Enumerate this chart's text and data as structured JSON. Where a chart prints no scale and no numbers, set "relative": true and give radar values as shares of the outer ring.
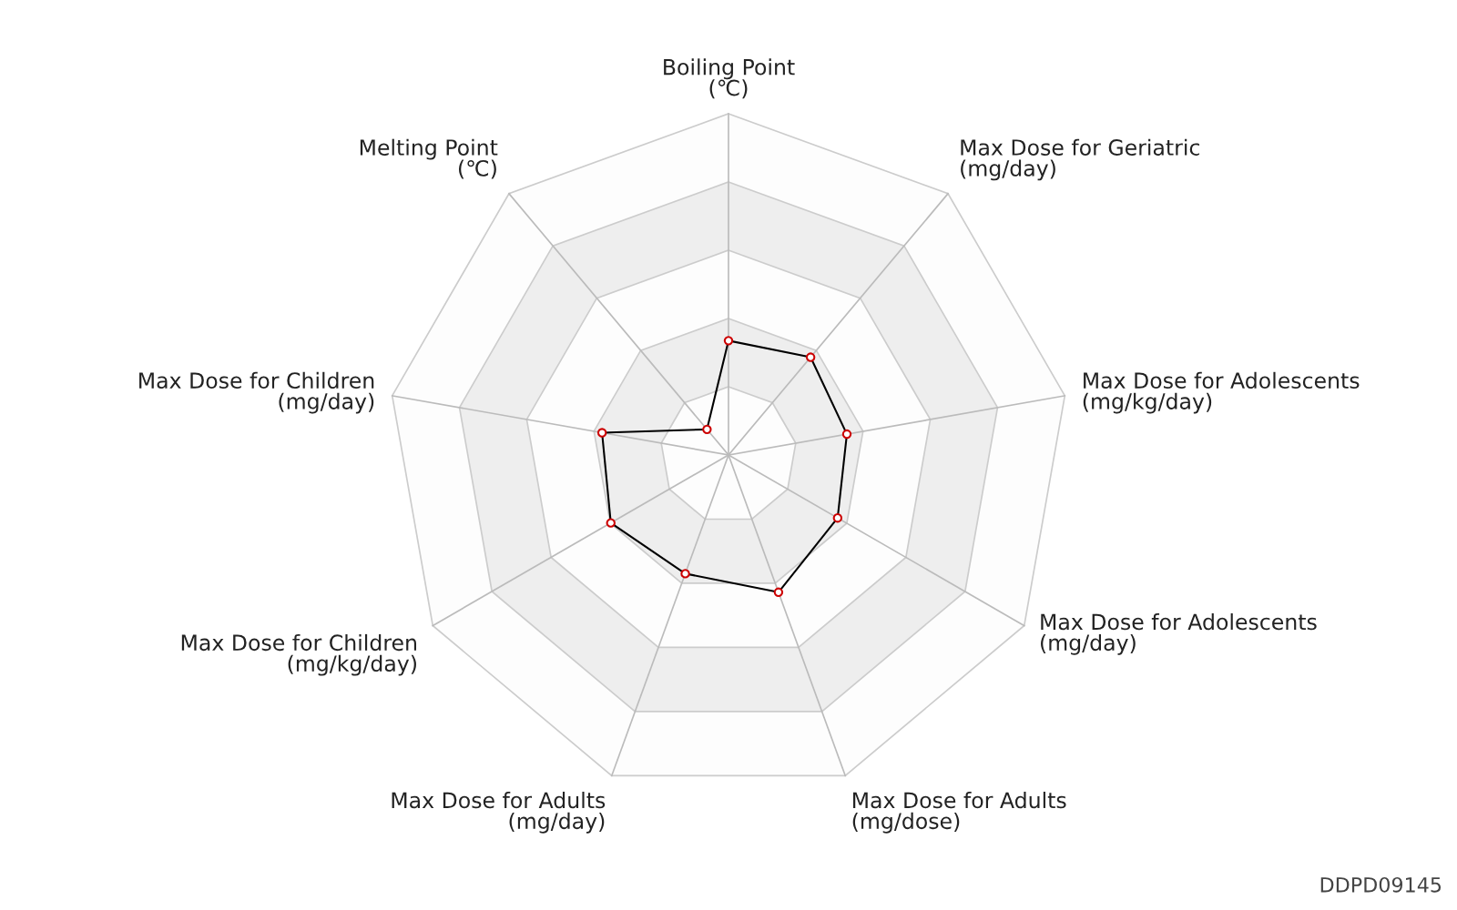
{
  "chart_data": {
    "type": "radar",
    "relative": true,
    "grid": true,
    "marker": "circle",
    "line_style": "solid",
    "categories": [
      "Boiling Point\n(℃)",
      "Max Dose for Geriatric\n(mg/day)",
      "Max Dose for Adolescents\n(mg/kg/day)",
      "Max Dose for Adolescents\n(mg/day)",
      "Max Dose for Adults\n(mg/dose)",
      "Max Dose for Adults\n(mg/day)",
      "Max Dose for Children\n(mg/kg/day)",
      "Max Dose for Children\n(mg/day)",
      "Melting Point\n(℃)"
    ],
    "series": [
      {
        "color": "#000000",
        "values": [
          0.335,
          0.374,
          0.352,
          0.369,
          0.428,
          0.37,
          0.398,
          0.376,
          0.098
        ]
      }
    ],
    "annotations": [
      "DDPD09145"
    ]
  }
}
